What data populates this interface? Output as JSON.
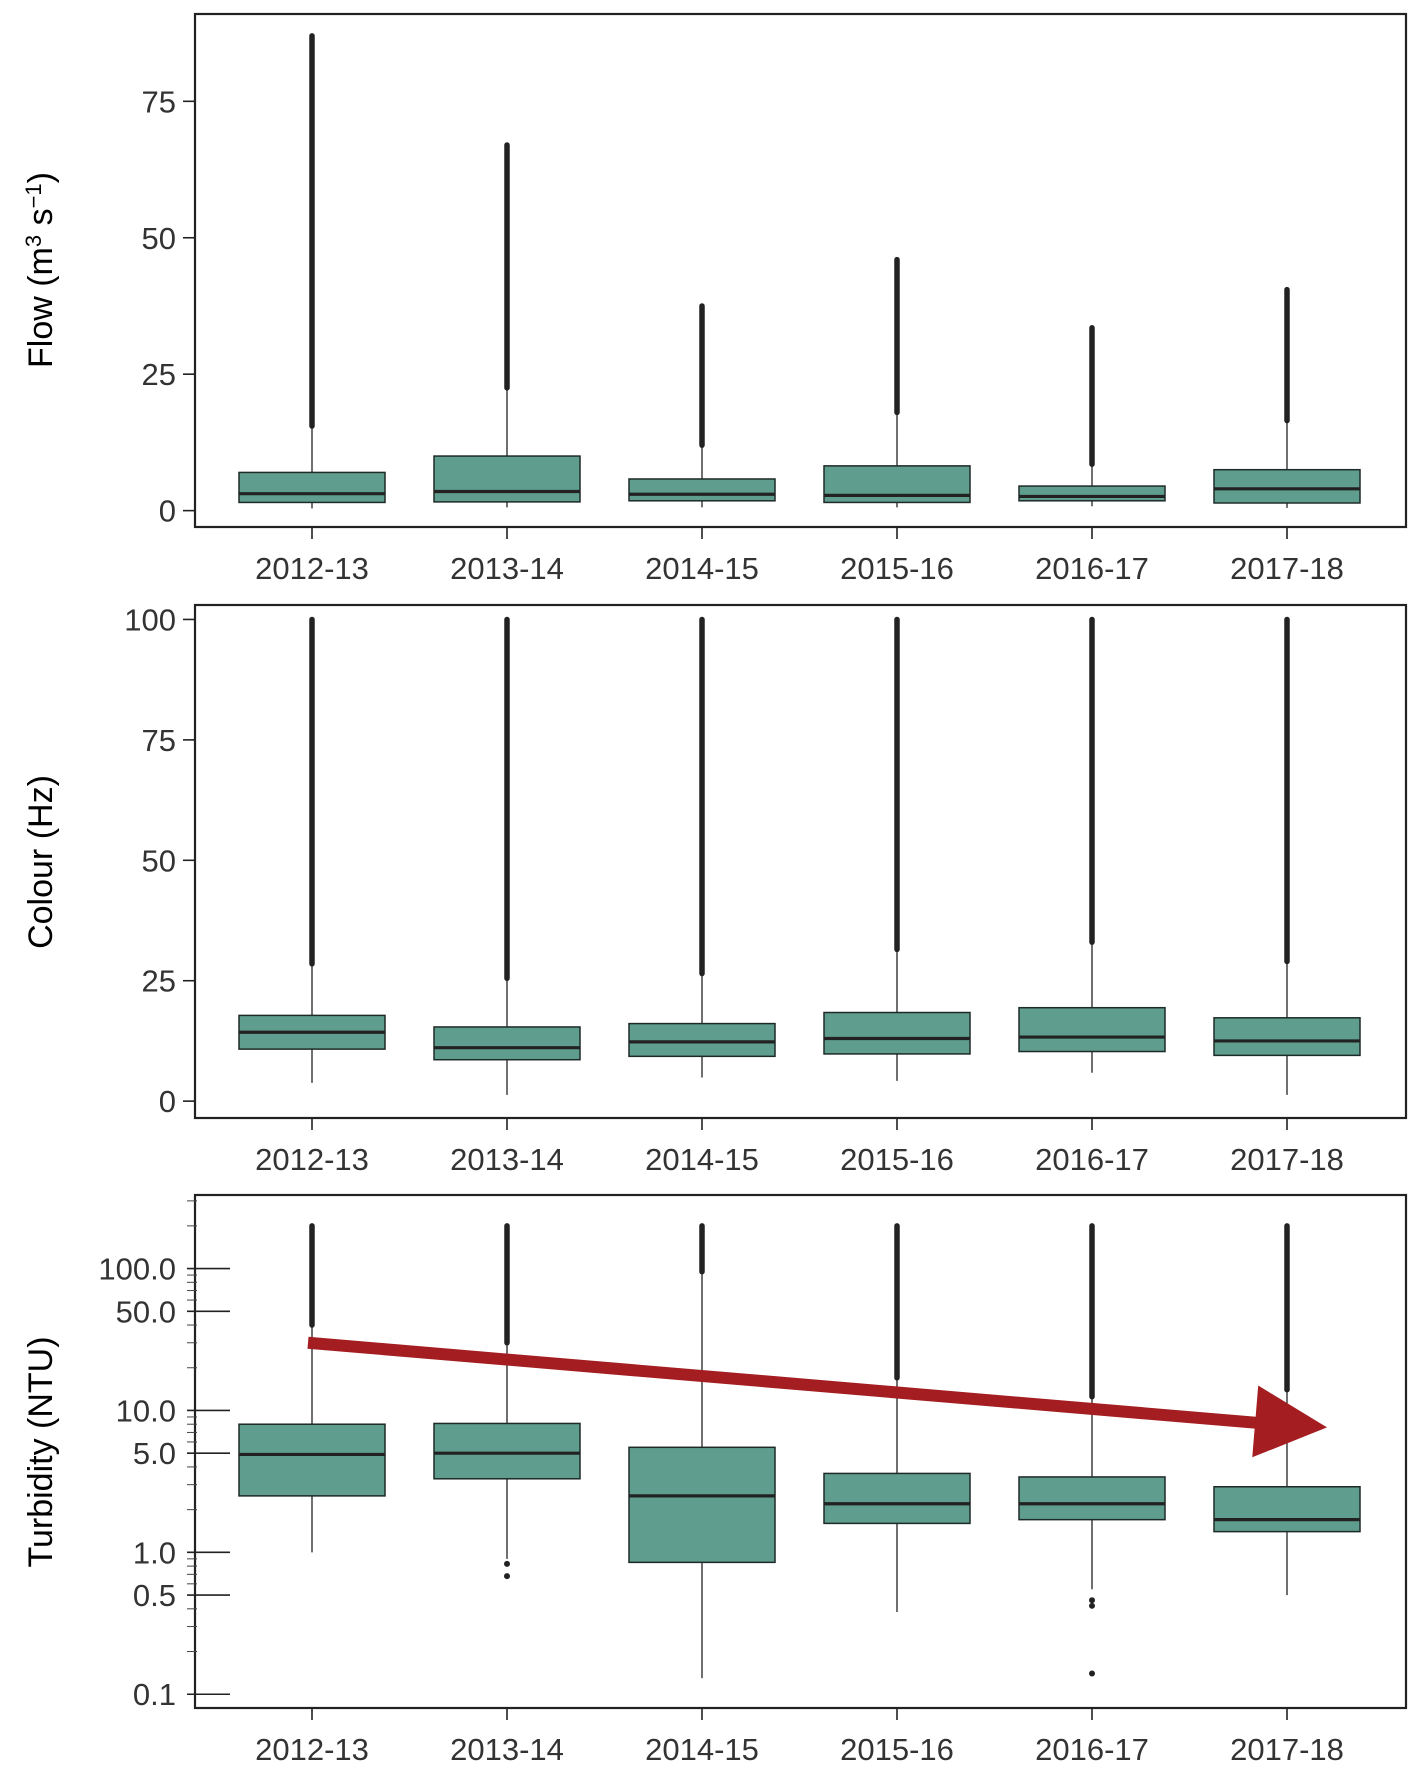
{
  "colors": {
    "box_fill": "#5f9e8f",
    "box_stroke": "#1e2a27",
    "median": "#222222",
    "outlier": "#222222",
    "trend_arrow": "#a41d21"
  },
  "chart_data": [
    {
      "type": "boxplot",
      "ylabel": "Flow (m3 s-1)",
      "ylabel_parts": {
        "base": "Flow (m",
        "sup1": "3",
        "mid": " s",
        "sup2": "−1",
        "end": ")"
      },
      "categories": [
        "2012-13",
        "2013-14",
        "2014-15",
        "2015-16",
        "2016-17",
        "2017-18"
      ],
      "yscale": "linear",
      "ylim": [
        -3,
        91
      ],
      "yticks": [
        0,
        25,
        50,
        75
      ],
      "ytick_labels": [
        "0",
        "25",
        "50",
        "75"
      ],
      "boxes": [
        {
          "whisker_low": 0.4,
          "q1": 1.5,
          "median": 3.1,
          "q3": 7.0,
          "whisker_high": 15.5,
          "outlier_max": 87
        },
        {
          "whisker_low": 0.6,
          "q1": 1.6,
          "median": 3.5,
          "q3": 10.0,
          "whisker_high": 22.5,
          "outlier_max": 67
        },
        {
          "whisker_low": 0.6,
          "q1": 1.8,
          "median": 3.0,
          "q3": 5.8,
          "whisker_high": 12.0,
          "outlier_max": 37.5
        },
        {
          "whisker_low": 0.6,
          "q1": 1.5,
          "median": 2.8,
          "q3": 8.2,
          "whisker_high": 18.0,
          "outlier_max": 46
        },
        {
          "whisker_low": 0.8,
          "q1": 1.8,
          "median": 2.6,
          "q3": 4.5,
          "whisker_high": 8.5,
          "outlier_max": 33.5
        },
        {
          "whisker_low": 0.5,
          "q1": 1.4,
          "median": 4.0,
          "q3": 7.5,
          "whisker_high": 16.5,
          "outlier_max": 40.5
        }
      ]
    },
    {
      "type": "boxplot",
      "ylabel": "Colour (Hz)",
      "categories": [
        "2012-13",
        "2013-14",
        "2014-15",
        "2015-16",
        "2016-17",
        "2017-18"
      ],
      "yscale": "linear",
      "ylim": [
        -3.5,
        103
      ],
      "yticks": [
        0,
        25,
        50,
        75,
        100
      ],
      "ytick_labels": [
        "0",
        "25",
        "50",
        "75",
        "100"
      ],
      "boxes": [
        {
          "whisker_low": 3.8,
          "q1": 10.8,
          "median": 14.3,
          "q3": 17.8,
          "whisker_high": 28.5,
          "outlier_max": 100
        },
        {
          "whisker_low": 1.3,
          "q1": 8.6,
          "median": 11.1,
          "q3": 15.4,
          "whisker_high": 25.5,
          "outlier_max": 100
        },
        {
          "whisker_low": 4.9,
          "q1": 9.3,
          "median": 12.3,
          "q3": 16.1,
          "whisker_high": 26.5,
          "outlier_max": 100
        },
        {
          "whisker_low": 4.2,
          "q1": 9.8,
          "median": 13.0,
          "q3": 18.4,
          "whisker_high": 31.5,
          "outlier_max": 100
        },
        {
          "whisker_low": 5.9,
          "q1": 10.3,
          "median": 13.3,
          "q3": 19.4,
          "whisker_high": 33.0,
          "outlier_max": 100
        },
        {
          "whisker_low": 1.3,
          "q1": 9.5,
          "median": 12.5,
          "q3": 17.3,
          "whisker_high": 29.0,
          "outlier_max": 100
        }
      ]
    },
    {
      "type": "boxplot",
      "ylabel": "Turbidity (NTU)",
      "categories": [
        "2012-13",
        "2013-14",
        "2014-15",
        "2015-16",
        "2016-17",
        "2017-18"
      ],
      "yscale": "log",
      "ylim": [
        0.08,
        330
      ],
      "yticks": [
        0.1,
        0.5,
        1.0,
        5.0,
        10.0,
        50.0,
        100.0
      ],
      "ytick_labels": [
        "0.1",
        "0.5",
        "1.0",
        "5.0",
        "10.0",
        "50.0",
        "100.0"
      ],
      "boxes": [
        {
          "whisker_low": 1.0,
          "q1": 2.5,
          "median": 4.9,
          "q3": 8.0,
          "whisker_high": 40,
          "outlier_max": 200,
          "outliers_low": []
        },
        {
          "whisker_low": 0.9,
          "q1": 3.3,
          "median": 5.0,
          "q3": 8.1,
          "whisker_high": 30,
          "outlier_max": 200,
          "outliers_low": [
            0.68,
            0.83
          ]
        },
        {
          "whisker_low": 0.13,
          "q1": 0.85,
          "median": 2.5,
          "q3": 5.5,
          "whisker_high": 95,
          "outlier_max": 200,
          "outliers_low": []
        },
        {
          "whisker_low": 0.38,
          "q1": 1.6,
          "median": 2.2,
          "q3": 3.6,
          "whisker_high": 17,
          "outlier_max": 200,
          "outliers_low": []
        },
        {
          "whisker_low": 0.55,
          "q1": 1.7,
          "median": 2.2,
          "q3": 3.4,
          "whisker_high": 12.5,
          "outlier_max": 200,
          "outliers_low": [
            0.42,
            0.46,
            0.14
          ]
        },
        {
          "whisker_low": 0.5,
          "q1": 1.4,
          "median": 1.7,
          "q3": 2.9,
          "whisker_high": 14,
          "outlier_max": 200,
          "outliers_low": []
        }
      ],
      "trend_arrow": {
        "from": {
          "category": "2012-13",
          "y": 30
        },
        "to": {
          "category_offset_after": "2017-18",
          "y": 7.6
        },
        "direction": "decreasing"
      }
    }
  ]
}
